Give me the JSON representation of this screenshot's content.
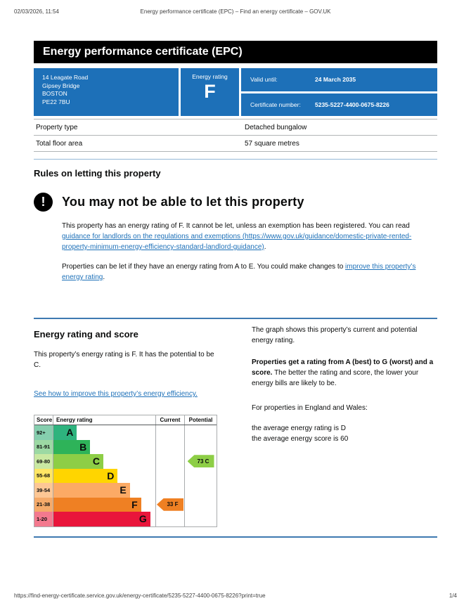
{
  "colors": {
    "brand_blue": "#1d70b8",
    "banner_bg": "#000000",
    "link": "#1d70b8"
  },
  "print_header": {
    "datetime": "02/03/2026, 11:54",
    "title": "Energy performance certificate (EPC) – Find an energy certificate – GOV.UK"
  },
  "print_footer": {
    "url": "https://find-energy-certificate.service.gov.uk/energy-certificate/5235-5227-4400-0675-8226?print=true",
    "page_number": "1/4"
  },
  "banner": {
    "title": "Energy performance certificate (EPC)"
  },
  "summary": {
    "address_lines": {
      "0": "14 Leagate Road",
      "1": "Gipsey Bridge",
      "2": "BOSTON",
      "3": "PE22 7BU"
    },
    "energy_rating_label": "Energy rating",
    "energy_rating": "F",
    "valid_until_label": "Valid until:",
    "valid_until_value": "24 March 2035",
    "certificate_number_label": "Certificate number:",
    "certificate_number_value": "5235-5227-4400-0675-8226"
  },
  "property_table": {
    "rows": [
      {
        "label": "Property type",
        "value": "Detached bungalow"
      },
      {
        "label": "Total floor area",
        "value": "57 square metres"
      }
    ]
  },
  "rules_section": {
    "heading": "Rules on letting this property",
    "warning_icon_glyph": "!",
    "warning_heading": "You may not be able to let this property",
    "para1_pre": "This property has an energy rating of F. It cannot be let, unless an exemption has been registered. You can read ",
    "para1_link": "guidance for landlords on the regulations and exemptions (https://www.gov.uk/guidance/domestic-private-rented-property-minimum-energy-efficiency-standard-landlord-guidance)",
    "para1_post": ".",
    "para2_pre": "Properties can be let if they have an energy rating from A to E. You could make changes to ",
    "para2_link": "improve this property’s energy rating",
    "para2_post": "."
  },
  "rating_section": {
    "heading": "Energy rating and score",
    "intro": "This property’s energy rating is F. It has the potential to be C.",
    "improve_link": "See how to improve this property’s energy efficiency.",
    "right_para1": "The graph shows this property’s current and potential energy rating.",
    "right_para2_bold": "Properties get a rating from A (best) to G (worst) and a score.",
    "right_para2_rest": " The better the rating and score, the lower your energy bills are likely to be.",
    "right_para3": "For properties in England and Wales:",
    "right_line1": "the average energy rating is D",
    "right_line2": "the average energy score is 60"
  },
  "chart_data": {
    "type": "epc-rating-chart",
    "headers": {
      "score": "Score",
      "rating": "Energy rating",
      "current": "Current",
      "potential": "Potential"
    },
    "bands": [
      {
        "score": "92+",
        "letter": "A",
        "bar_color": "#2eb37e",
        "score_color": "#85ceae",
        "width_pct": 23
      },
      {
        "score": "81-91",
        "letter": "B",
        "bar_color": "#2eb359",
        "score_color": "#9cd9a3",
        "width_pct": 36
      },
      {
        "score": "69-80",
        "letter": "C",
        "bar_color": "#8dce46",
        "score_color": "#c9e8a2",
        "width_pct": 49
      },
      {
        "score": "55-68",
        "letter": "D",
        "bar_color": "#ffd500",
        "score_color": "#ffe664",
        "width_pct": 63
      },
      {
        "score": "39-54",
        "letter": "E",
        "bar_color": "#fcaa65",
        "score_color": "#fdc795",
        "width_pct": 75
      },
      {
        "score": "21-38",
        "letter": "F",
        "bar_color": "#ef8023",
        "score_color": "#f5aa6a",
        "width_pct": 86
      },
      {
        "score": "1-20",
        "letter": "G",
        "bar_color": "#e9153b",
        "score_color": "#f3798e",
        "width_pct": 95
      }
    ],
    "current": {
      "score": 33,
      "rating": "F",
      "label": "33 F",
      "color": "#ef8023",
      "band_index": 5
    },
    "potential": {
      "score": 73,
      "rating": "C",
      "label": "73 C",
      "color": "#8dce46",
      "band_index": 2
    }
  }
}
